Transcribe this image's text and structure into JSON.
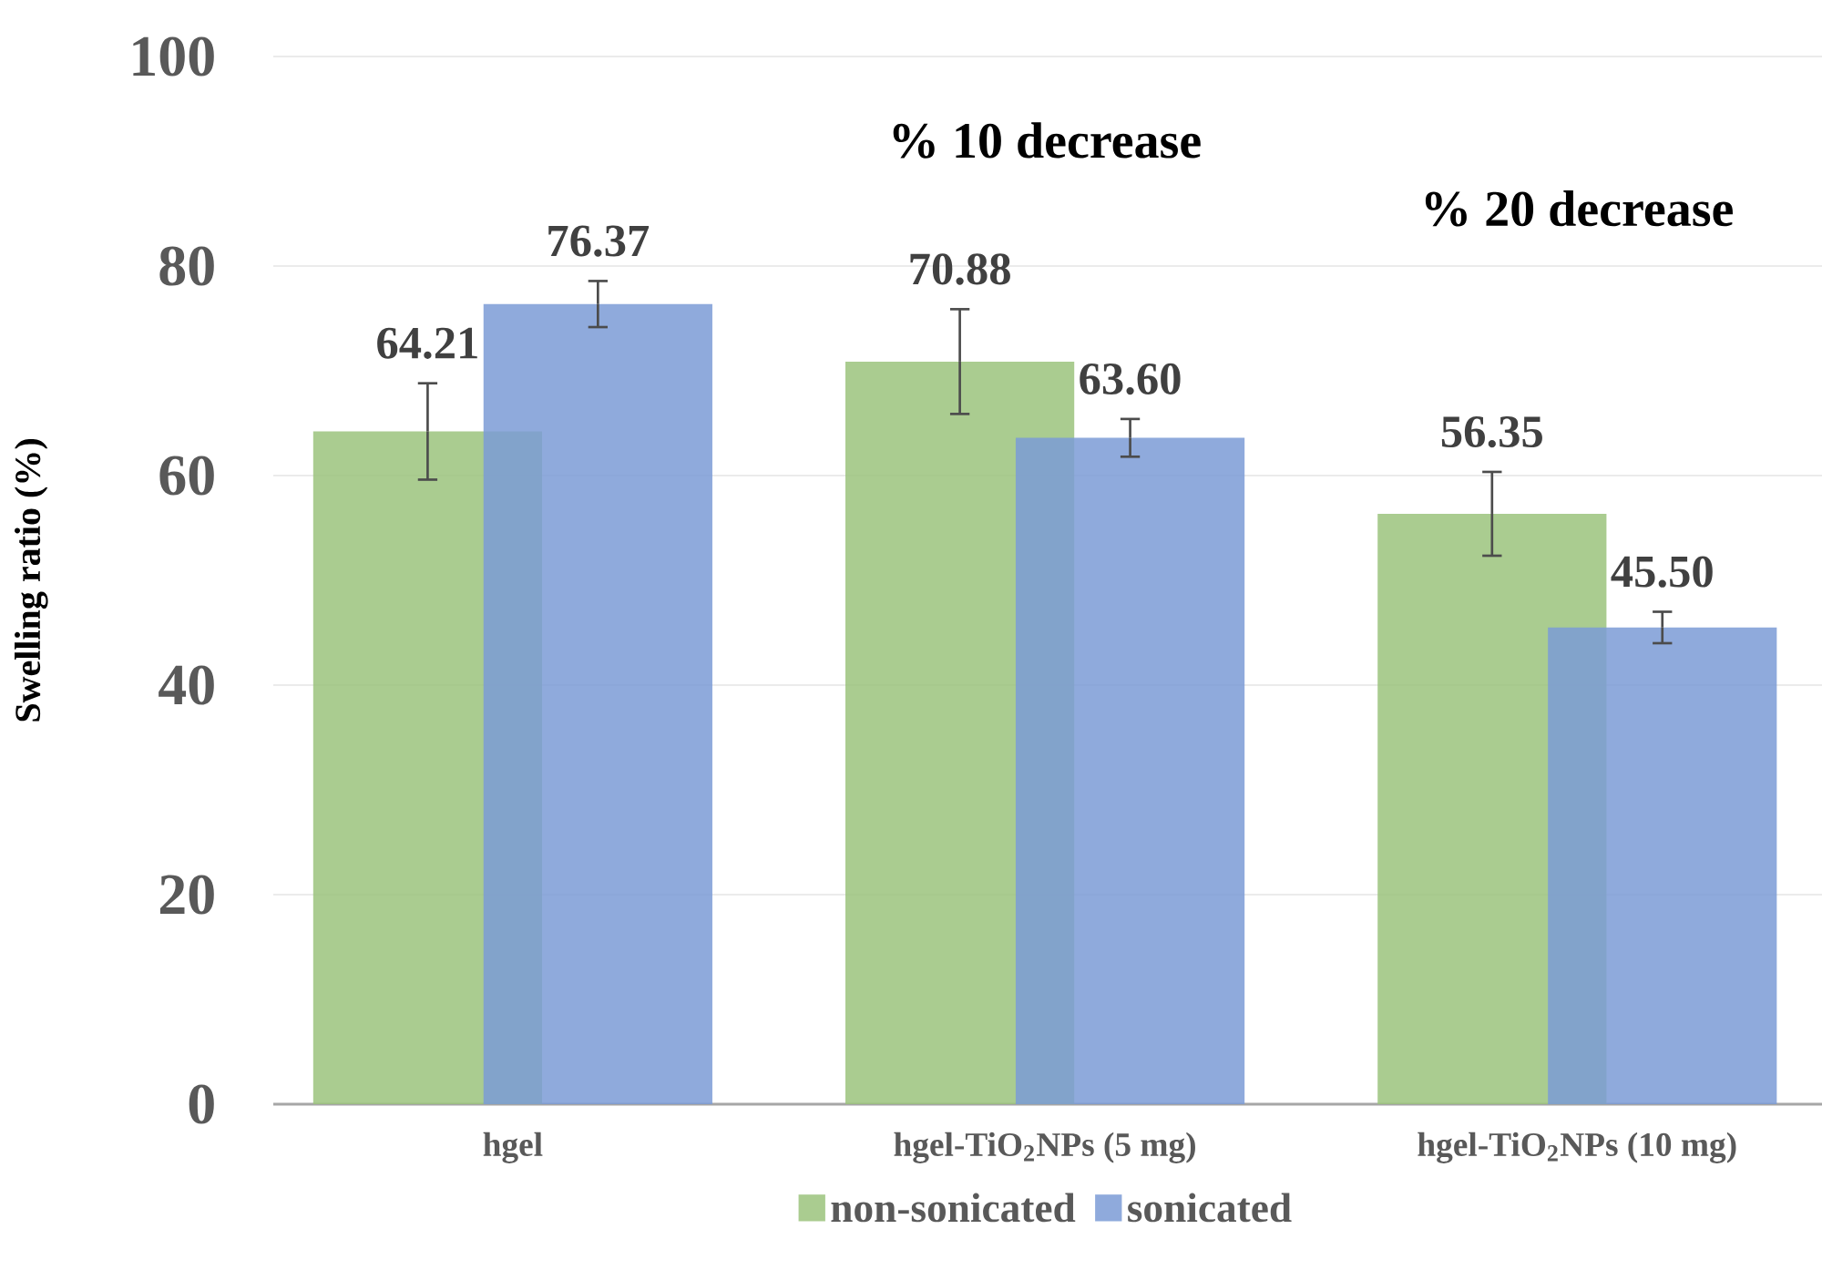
{
  "chart_data": {
    "type": "bar",
    "ylabel": "Swelling ratio (%)",
    "categories": [
      "hgel",
      "hgel-TiO$_{2}$NPs (5 mg)",
      "hgel-TiO$_{2}$NPs (10 mg)"
    ],
    "series": [
      {
        "name": "non-sonicated",
        "color": "#9bc37c",
        "values": [
          64.21,
          70.88,
          56.35
        ],
        "errors": [
          4.6,
          5.0,
          4.0
        ],
        "value_labels": [
          "64.21",
          "70.88",
          "56.35"
        ]
      },
      {
        "name": "sonicated",
        "color": "#7b9bd6",
        "values": [
          76.37,
          63.6,
          45.5
        ],
        "errors": [
          2.2,
          1.8,
          1.5
        ],
        "value_labels": [
          "76.37",
          "63.60",
          "45.50"
        ]
      }
    ],
    "annotations": [
      "% 10 decrease",
      "% 20 decrease"
    ],
    "ylim": [
      0,
      100
    ],
    "yticks": [
      0,
      20,
      40,
      60,
      80,
      100
    ],
    "grid": "y",
    "legend": "bottom"
  }
}
